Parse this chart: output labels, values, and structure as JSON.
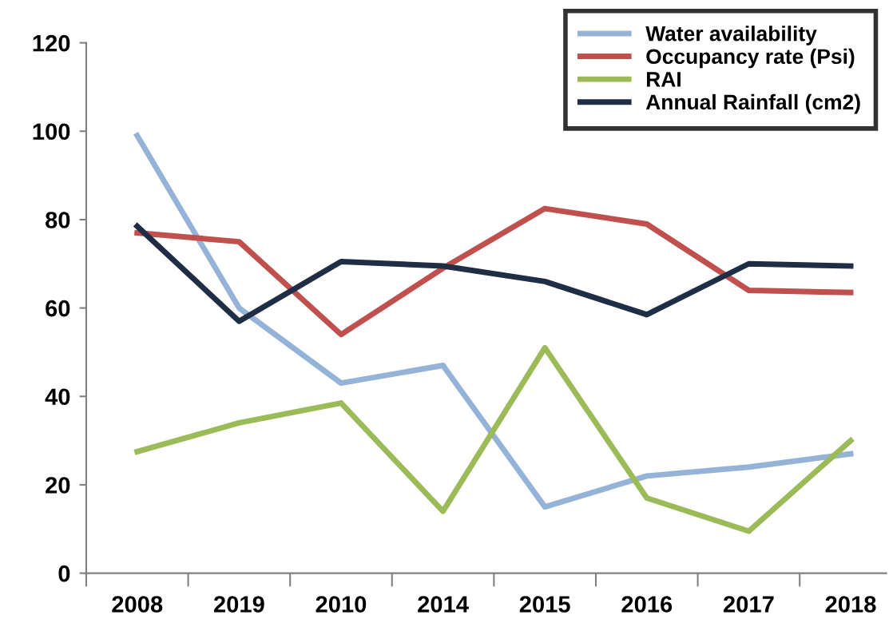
{
  "chart_data": {
    "type": "line",
    "categories": [
      "2008",
      "2019",
      "2010",
      "2014",
      "2015",
      "2016",
      "2017",
      "2018"
    ],
    "ylim": [
      0,
      120
    ],
    "yticks": [
      0,
      20,
      40,
      60,
      80,
      100,
      120
    ],
    "grid": false,
    "legend": "top right",
    "marker": "none",
    "line_style": "solid",
    "series": [
      {
        "name": "Water availability",
        "color": "#95b3d7",
        "values": [
          99,
          60,
          43,
          47,
          15,
          22,
          24,
          27
        ]
      },
      {
        "name": "Occupancy rate (Psi)",
        "color": "#c0504d",
        "values": [
          77,
          75,
          54,
          69,
          82.5,
          79,
          64,
          63.5
        ]
      },
      {
        "name": "RAI",
        "color": "#9bbb59",
        "values": [
          27.5,
          34,
          38.5,
          14,
          51,
          17,
          9.5,
          30
        ]
      },
      {
        "name": "Annual Rainfall (cm2)",
        "color": "#1f2d45",
        "values": [
          78.5,
          57,
          70.5,
          69.5,
          66,
          58.5,
          70,
          69.5
        ]
      }
    ]
  }
}
